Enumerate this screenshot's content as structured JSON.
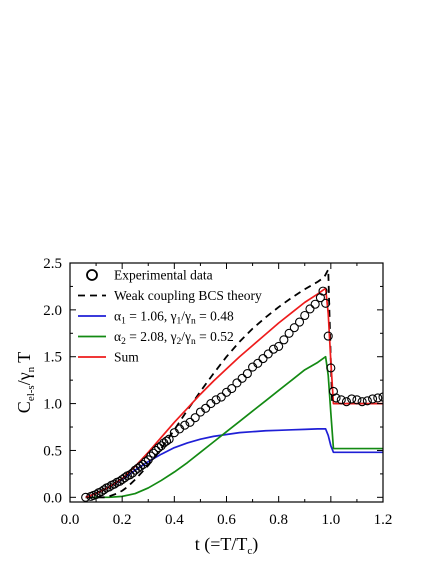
{
  "chart_data": {
    "type": "line",
    "title": "",
    "xlabel": {
      "main": "t (=T/T",
      "sub": "c",
      "tail": ")"
    },
    "ylabel": {
      "c": "C",
      "sub1": "el-s",
      "slash": "/γ",
      "sub2": "n",
      "t": "T"
    },
    "xlim": [
      0.0,
      1.2
    ],
    "ylim": [
      -0.05,
      2.5
    ],
    "x_ticks": [
      0.0,
      0.2,
      0.4,
      0.6,
      0.8,
      1.0,
      1.2
    ],
    "y_ticks": [
      0.0,
      0.5,
      1.0,
      1.5,
      2.0,
      2.5
    ],
    "x_tick_labels": [
      "0.0",
      "0.2",
      "0.4",
      "0.6",
      "0.8",
      "1.0",
      "1.2"
    ],
    "y_tick_labels": [
      "0.0",
      "0.5",
      "1.0",
      "1.5",
      "2.0",
      "2.5"
    ],
    "grid": false,
    "legend_position": "top-left",
    "legend": [
      {
        "key": "exp",
        "parts": [
          {
            "t": "Experimental data"
          }
        ]
      },
      {
        "key": "bcs",
        "parts": [
          {
            "t": "Weak coupling BCS theory"
          }
        ]
      },
      {
        "key": "s1",
        "parts": [
          {
            "t": "α"
          },
          {
            "t": "1",
            "sub": true
          },
          {
            "t": " = 1.06,  γ"
          },
          {
            "t": "1",
            "sub": true
          },
          {
            "t": "/γ"
          },
          {
            "t": "n",
            "sub": true
          },
          {
            "t": " = 0.48"
          }
        ]
      },
      {
        "key": "s2",
        "parts": [
          {
            "t": "α"
          },
          {
            "t": "2",
            "sub": true
          },
          {
            "t": " = 2.08,  γ"
          },
          {
            "t": "2",
            "sub": true
          },
          {
            "t": "/γ"
          },
          {
            "t": "n",
            "sub": true
          },
          {
            "t": " = 0.52"
          }
        ]
      },
      {
        "key": "sum",
        "parts": [
          {
            "t": "Sum"
          }
        ]
      }
    ],
    "series": [
      {
        "key": "exp",
        "kind": "scatter",
        "color": "#000000",
        "x": [
          0.06,
          0.08,
          0.09,
          0.1,
          0.11,
          0.12,
          0.13,
          0.14,
          0.15,
          0.16,
          0.17,
          0.18,
          0.19,
          0.2,
          0.21,
          0.22,
          0.23,
          0.24,
          0.25,
          0.26,
          0.27,
          0.28,
          0.29,
          0.3,
          0.31,
          0.32,
          0.33,
          0.34,
          0.35,
          0.36,
          0.37,
          0.38,
          0.4,
          0.42,
          0.44,
          0.46,
          0.48,
          0.5,
          0.52,
          0.54,
          0.56,
          0.58,
          0.6,
          0.62,
          0.64,
          0.66,
          0.68,
          0.7,
          0.72,
          0.74,
          0.76,
          0.78,
          0.8,
          0.82,
          0.84,
          0.86,
          0.88,
          0.9,
          0.92,
          0.94,
          0.96,
          0.97,
          0.98,
          0.99,
          1.0,
          1.01,
          1.02,
          1.04,
          1.06,
          1.08,
          1.1,
          1.12,
          1.14,
          1.16,
          1.18,
          1.2
        ],
        "y": [
          0.0,
          0.01,
          0.02,
          0.03,
          0.05,
          0.06,
          0.08,
          0.1,
          0.11,
          0.13,
          0.14,
          0.16,
          0.17,
          0.19,
          0.21,
          0.23,
          0.24,
          0.26,
          0.29,
          0.31,
          0.33,
          0.35,
          0.38,
          0.4,
          0.44,
          0.47,
          0.5,
          0.53,
          0.55,
          0.58,
          0.6,
          0.62,
          0.69,
          0.73,
          0.77,
          0.8,
          0.85,
          0.91,
          0.95,
          1.0,
          1.04,
          1.07,
          1.12,
          1.16,
          1.22,
          1.27,
          1.32,
          1.39,
          1.43,
          1.48,
          1.53,
          1.58,
          1.61,
          1.68,
          1.75,
          1.81,
          1.87,
          1.94,
          2.01,
          2.06,
          2.13,
          2.2,
          2.07,
          1.72,
          1.38,
          1.13,
          1.06,
          1.04,
          1.02,
          1.05,
          1.04,
          1.02,
          1.03,
          1.05,
          1.06,
          1.07
        ]
      },
      {
        "key": "bcs",
        "kind": "line",
        "color": "#000000",
        "dash": "7,5",
        "x": [
          0.06,
          0.1,
          0.14,
          0.18,
          0.2,
          0.22,
          0.25,
          0.3,
          0.35,
          0.4,
          0.45,
          0.5,
          0.55,
          0.6,
          0.65,
          0.7,
          0.75,
          0.8,
          0.85,
          0.9,
          0.95,
          0.975,
          0.99,
          1.0,
          1.005,
          1.2
        ],
        "y": [
          0.0,
          0.0,
          0.0,
          0.04,
          0.07,
          0.11,
          0.19,
          0.34,
          0.52,
          0.72,
          0.93,
          1.13,
          1.32,
          1.5,
          1.66,
          1.8,
          1.92,
          2.03,
          2.13,
          2.22,
          2.3,
          2.35,
          2.43,
          1.45,
          1.0,
          1.0
        ]
      },
      {
        "key": "s1",
        "kind": "line",
        "color": "#1f1fd6",
        "x": [
          0.06,
          0.1,
          0.15,
          0.2,
          0.25,
          0.3,
          0.35,
          0.4,
          0.45,
          0.5,
          0.55,
          0.6,
          0.65,
          0.7,
          0.75,
          0.8,
          0.85,
          0.9,
          0.95,
          0.98,
          0.99,
          1.0,
          1.01,
          1.2
        ],
        "y": [
          0.0,
          0.04,
          0.11,
          0.19,
          0.29,
          0.38,
          0.46,
          0.53,
          0.58,
          0.62,
          0.65,
          0.67,
          0.69,
          0.7,
          0.71,
          0.715,
          0.72,
          0.725,
          0.73,
          0.73,
          0.66,
          0.55,
          0.48,
          0.48
        ]
      },
      {
        "key": "s2",
        "kind": "line",
        "color": "#138a13",
        "x": [
          0.06,
          0.1,
          0.15,
          0.2,
          0.25,
          0.3,
          0.35,
          0.4,
          0.45,
          0.5,
          0.55,
          0.6,
          0.65,
          0.7,
          0.75,
          0.8,
          0.85,
          0.9,
          0.95,
          0.98,
          0.99,
          1.0,
          1.01,
          1.2
        ],
        "y": [
          0.0,
          0.0,
          0.0,
          0.01,
          0.04,
          0.1,
          0.18,
          0.27,
          0.37,
          0.48,
          0.59,
          0.7,
          0.81,
          0.92,
          1.03,
          1.14,
          1.25,
          1.36,
          1.44,
          1.5,
          1.3,
          0.9,
          0.52,
          0.52
        ]
      },
      {
        "key": "sum",
        "kind": "line",
        "color": "#ee1c1c",
        "x": [
          0.06,
          0.1,
          0.15,
          0.2,
          0.25,
          0.3,
          0.35,
          0.4,
          0.45,
          0.5,
          0.55,
          0.6,
          0.65,
          0.7,
          0.75,
          0.8,
          0.85,
          0.9,
          0.95,
          0.98,
          0.99,
          1.0,
          1.01,
          1.2
        ],
        "y": [
          0.0,
          0.04,
          0.11,
          0.2,
          0.33,
          0.48,
          0.64,
          0.8,
          0.95,
          1.1,
          1.24,
          1.37,
          1.5,
          1.62,
          1.74,
          1.86,
          1.97,
          2.08,
          2.17,
          2.23,
          1.96,
          1.45,
          1.0,
          1.0
        ]
      }
    ]
  }
}
